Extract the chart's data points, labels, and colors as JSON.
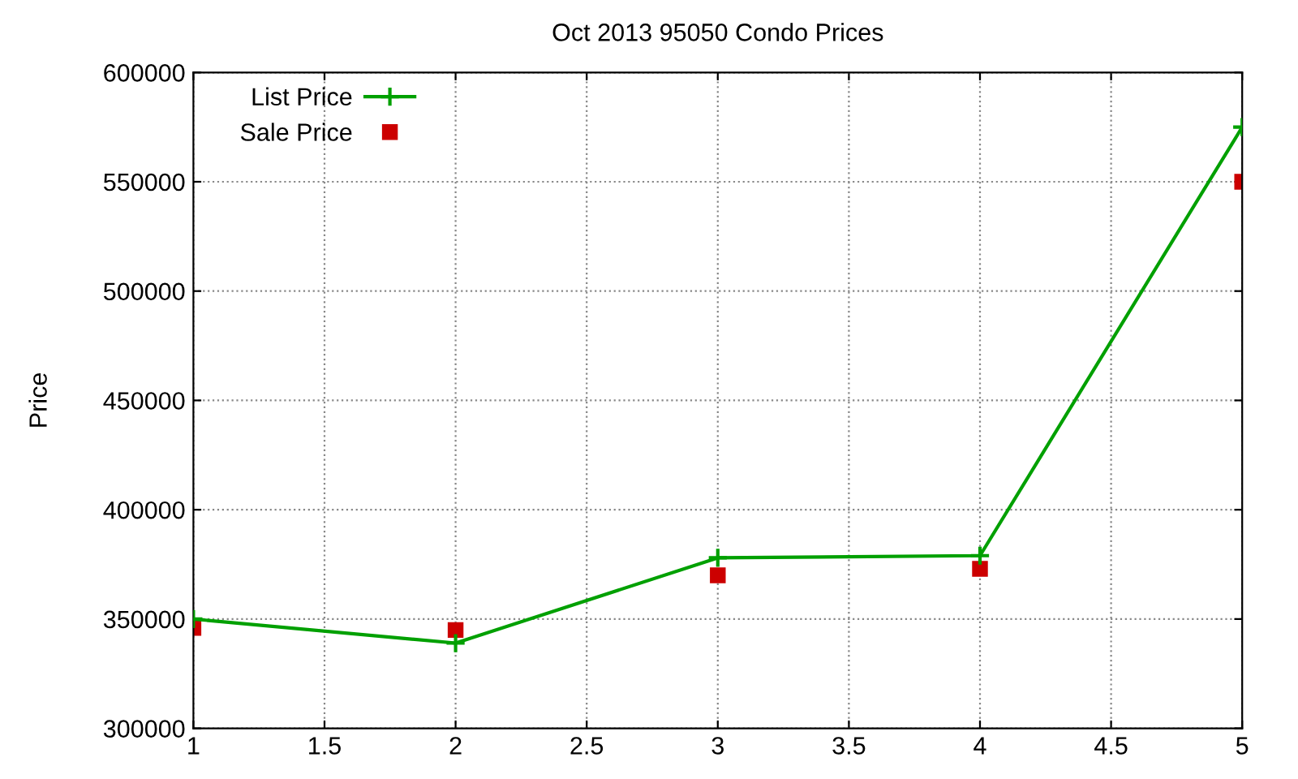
{
  "chart_data": {
    "type": "line",
    "title": "Oct 2013 95050 Condo Prices",
    "ylabel": "Price",
    "x": [
      1,
      2,
      3,
      4,
      5
    ],
    "series": [
      {
        "name": "List Price",
        "color": "#00a000",
        "values": [
          350000,
          339000,
          378000,
          379000,
          575000
        ],
        "marker": "cross",
        "line_style": "solid"
      },
      {
        "name": "Sale Price",
        "color": "#cc0000",
        "values": [
          346000,
          345000,
          370000,
          373000,
          550000
        ],
        "type": "scatter",
        "marker": "square"
      }
    ],
    "xlim": [
      1,
      5
    ],
    "xticks": [
      1,
      1.5,
      2,
      2.5,
      3,
      3.5,
      4,
      4.5,
      5
    ],
    "ylim": [
      300000,
      600000
    ],
    "yticks": [
      300000,
      350000,
      400000,
      450000,
      500000,
      550000,
      600000
    ],
    "grid": true,
    "legend": "top left"
  }
}
